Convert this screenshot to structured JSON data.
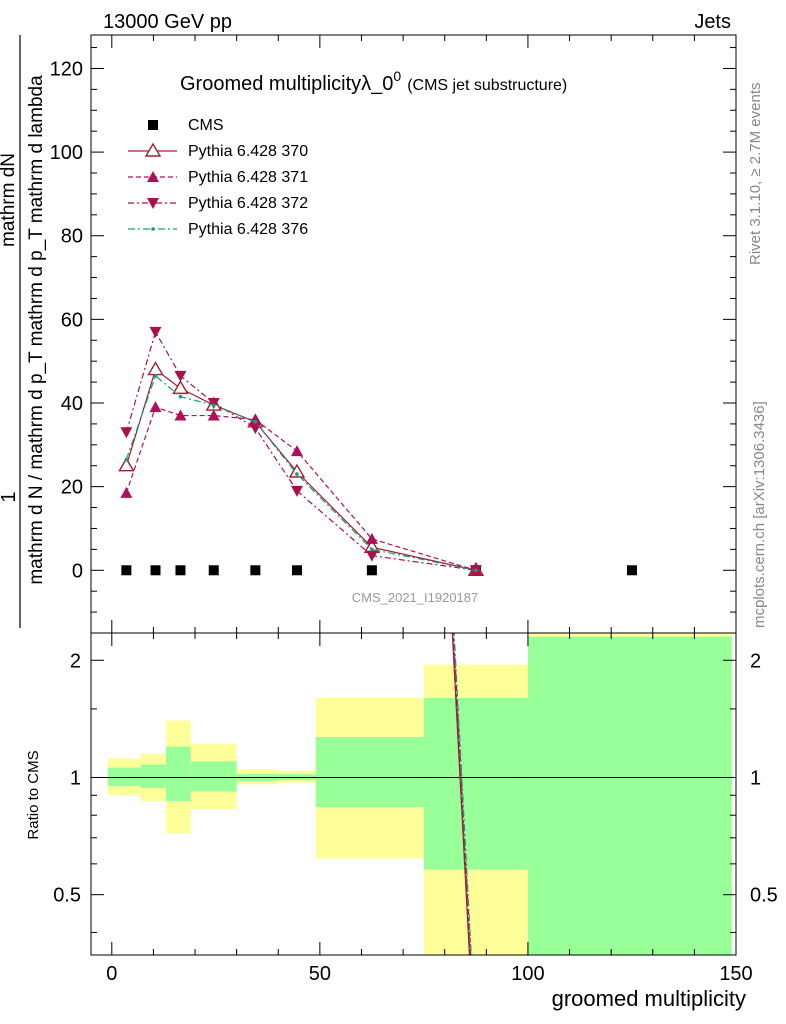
{
  "header": {
    "left": "13000 GeV pp",
    "right": "Jets"
  },
  "side_labels": {
    "rivet": "Rivet 3.1.10, ≥ 2.7M events",
    "mcplots": "mcplots.cern.ch [arXiv:1306.3436]"
  },
  "watermark": "CMS_2021_I1920187",
  "chart_data": [
    {
      "type": "line",
      "title_main": "Groomed multiplicityλ_0",
      "title_sup": "0",
      "title_sub": "(CMS jet substructure)",
      "ylabel_num": "mathrm dN",
      "ylabel_den": "mathrm d N / mathrm d p_T mathrm d p_T mathrm d lambda",
      "ylabel_prefix": "1",
      "xlim": [
        -5,
        150
      ],
      "ylim": [
        -15,
        128
      ],
      "y_ticks": [
        0,
        20,
        40,
        60,
        80,
        100,
        120
      ],
      "grid": false,
      "legend_position": "top-left",
      "colors": {
        "cms": "#000000",
        "p370": "#a0202c",
        "p371": "#b0105a",
        "p372": "#a8104e",
        "p376": "#1a9a80"
      },
      "series": [
        {
          "name": "CMS",
          "key": "cms",
          "style": "square",
          "x": [
            3.5,
            10.5,
            16.5,
            24.5,
            34.5,
            44.5,
            62.5,
            87.5,
            125
          ],
          "y": [
            0,
            0,
            0,
            0,
            0,
            0,
            0,
            0,
            0
          ]
        },
        {
          "name": "Pythia 6.428 370",
          "key": "p370",
          "style": "open-triangle-up",
          "x": [
            3.5,
            10.5,
            16.5,
            24.5,
            34.5,
            44.5,
            62.5,
            87.5
          ],
          "y": [
            25,
            48,
            43.5,
            39.5,
            35.5,
            23.5,
            5.5,
            0
          ]
        },
        {
          "name": "Pythia 6.428 371",
          "key": "p371",
          "style": "filled-triangle-up",
          "x": [
            3.5,
            10.5,
            16.5,
            24.5,
            34.5,
            44.5,
            62.5,
            87.5
          ],
          "y": [
            18.5,
            39,
            37,
            37,
            36,
            28.5,
            7.5,
            0
          ]
        },
        {
          "name": "Pythia 6.428 372",
          "key": "p372",
          "style": "filled-triangle-down",
          "x": [
            3.5,
            10.5,
            16.5,
            24.5,
            34.5,
            44.5,
            62.5,
            87.5
          ],
          "y": [
            33,
            57,
            46.5,
            40,
            34,
            19,
            3.5,
            0
          ]
        },
        {
          "name": "Pythia 6.428 376",
          "key": "p376",
          "style": "dot",
          "x": [
            3.5,
            10.5,
            16.5,
            24.5,
            34.5,
            44.5,
            62.5,
            87.5
          ],
          "y": [
            26.5,
            46.5,
            41.5,
            39.5,
            35.5,
            23,
            5,
            0
          ]
        }
      ]
    },
    {
      "type": "area",
      "ylabel": "Ratio to CMS",
      "xlabel": "groomed multiplicity",
      "xlim": [
        -5,
        150
      ],
      "ylim": [
        0.35,
        2.35
      ],
      "x_ticks": [
        0,
        50,
        100,
        150
      ],
      "y_ticks": [
        0.5,
        1,
        2
      ],
      "colors": {
        "outer": "#ffff99",
        "inner": "#99ff99",
        "line": "#000000"
      },
      "bands": [
        {
          "x0": -1,
          "x1": 7,
          "outer": [
            0.9,
            1.12
          ],
          "inner": [
            0.95,
            1.06
          ]
        },
        {
          "x0": 7,
          "x1": 13,
          "outer": [
            0.87,
            1.15
          ],
          "inner": [
            0.94,
            1.08
          ]
        },
        {
          "x0": 13,
          "x1": 19,
          "outer": [
            0.72,
            1.4
          ],
          "inner": [
            0.87,
            1.2
          ]
        },
        {
          "x0": 19,
          "x1": 30,
          "outer": [
            0.83,
            1.22
          ],
          "inner": [
            0.92,
            1.1
          ]
        },
        {
          "x0": 30,
          "x1": 40,
          "outer": [
            0.96,
            1.05
          ],
          "inner": [
            0.98,
            1.02
          ]
        },
        {
          "x0": 40,
          "x1": 49,
          "outer": [
            0.97,
            1.04
          ],
          "inner": [
            0.985,
            1.02
          ]
        },
        {
          "x0": 49,
          "x1": 75,
          "outer": [
            0.62,
            1.6
          ],
          "inner": [
            0.84,
            1.27
          ]
        },
        {
          "x0": 75,
          "x1": 100,
          "outer": [
            0.3,
            1.95
          ],
          "inner": [
            0.58,
            1.6
          ]
        },
        {
          "x0": 100,
          "x1": 149,
          "outer": [
            0.3,
            2.6
          ],
          "inner": [
            0.3,
            2.3
          ]
        }
      ],
      "mc_lines": {
        "x": [
          82,
          86.5
        ],
        "y": [
          2.4,
          0.3
        ]
      }
    }
  ]
}
